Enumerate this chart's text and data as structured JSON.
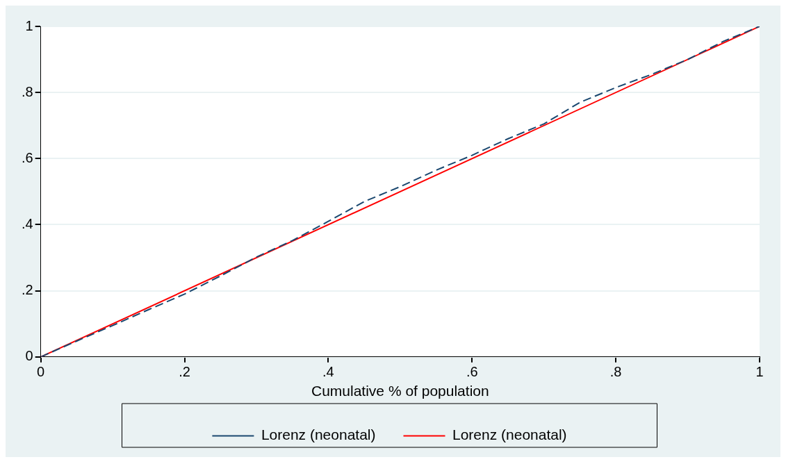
{
  "chart_data": {
    "type": "line",
    "xlabel": "Cumulative % of population",
    "xlim": [
      0,
      1
    ],
    "xticks": [
      {
        "value": 0,
        "label": "0"
      },
      {
        "value": 0.2,
        "label": ".2"
      },
      {
        "value": 0.4,
        "label": ".4"
      },
      {
        "value": 0.6,
        "label": ".6"
      },
      {
        "value": 0.8,
        "label": ".8"
      },
      {
        "value": 1,
        "label": "1"
      }
    ],
    "ylim": [
      0,
      1
    ],
    "yticks": [
      {
        "value": 0,
        "label": "0"
      },
      {
        "value": 0.2,
        "label": ".2"
      },
      {
        "value": 0.4,
        "label": ".4"
      },
      {
        "value": 0.6,
        "label": ".6"
      },
      {
        "value": 0.8,
        "label": ".8"
      },
      {
        "value": 1,
        "label": "1"
      }
    ],
    "grid": "y",
    "legend": "bottom",
    "marker": "none",
    "series": [
      {
        "name": "Lorenz (neonatal)",
        "color": "#1a476f",
        "line_style": "dashed",
        "x": [
          0,
          0.05,
          0.1,
          0.15,
          0.2,
          0.25,
          0.3,
          0.35,
          0.4,
          0.45,
          0.5,
          0.55,
          0.6,
          0.65,
          0.7,
          0.75,
          0.8,
          0.85,
          0.9,
          0.95,
          1
        ],
        "values": [
          0,
          0.048,
          0.095,
          0.143,
          0.19,
          0.245,
          0.302,
          0.352,
          0.41,
          0.47,
          0.515,
          0.565,
          0.61,
          0.66,
          0.705,
          0.77,
          0.815,
          0.855,
          0.9,
          0.955,
          1
        ]
      },
      {
        "name": "Lorenz (neonatal)",
        "color": "#ff0000",
        "line_style": "solid",
        "x": [
          0,
          1
        ],
        "values": [
          0,
          1
        ]
      }
    ]
  }
}
